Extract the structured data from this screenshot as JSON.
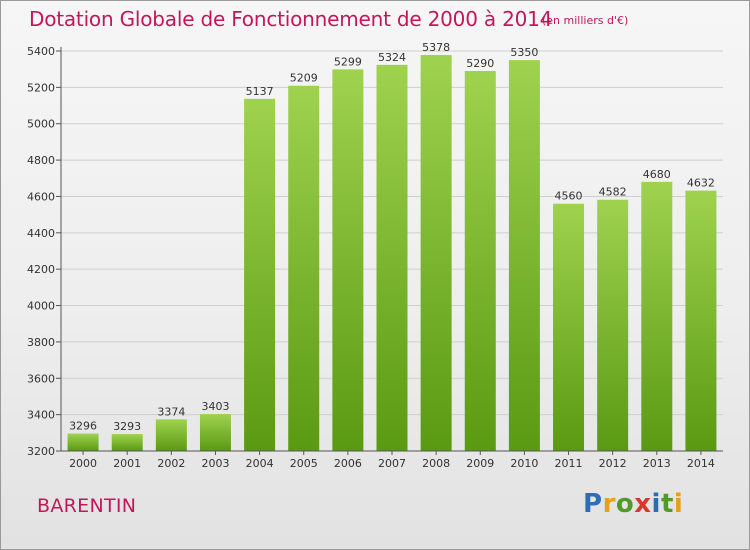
{
  "header": {
    "title": "Dotation Globale de Fonctionnement de 2000 à 2014",
    "unit": "(en milliers d'€)"
  },
  "footer": {
    "commune": "BARENTIN",
    "logo_letters": [
      {
        "char": "P",
        "color": "#2e6db4"
      },
      {
        "char": "r",
        "color": "#e8a01c"
      },
      {
        "char": "o",
        "color": "#4f9a2a"
      },
      {
        "char": "x",
        "color": "#d63a2a"
      },
      {
        "char": "i",
        "color": "#2e6db4"
      },
      {
        "char": "t",
        "color": "#4f9a2a"
      },
      {
        "char": "i",
        "color": "#e8a01c"
      }
    ]
  },
  "colors": {
    "title": "#c2185b",
    "bar_top": "#9fd24f",
    "bar_bottom": "#5a9a12",
    "grid": "#cfcfcf",
    "axis": "#555555"
  },
  "chart_data": {
    "type": "bar",
    "title": "Dotation Globale de Fonctionnement de 2000 à 2014",
    "subtitle": "(en milliers d'€)",
    "xlabel": "",
    "ylabel": "",
    "categories": [
      "2000",
      "2001",
      "2002",
      "2003",
      "2004",
      "2005",
      "2006",
      "2007",
      "2008",
      "2009",
      "2010",
      "2011",
      "2012",
      "2013",
      "2014"
    ],
    "values": [
      3296,
      3293,
      3374,
      3403,
      5137,
      5209,
      5299,
      5324,
      5378,
      5290,
      5350,
      4560,
      4582,
      4680,
      4632
    ],
    "ylim": [
      3200,
      5400
    ],
    "yticks": [
      3200,
      3400,
      3600,
      3800,
      4000,
      4200,
      4400,
      4600,
      4800,
      5000,
      5200,
      5400
    ],
    "grid": true,
    "data_labels": true
  }
}
